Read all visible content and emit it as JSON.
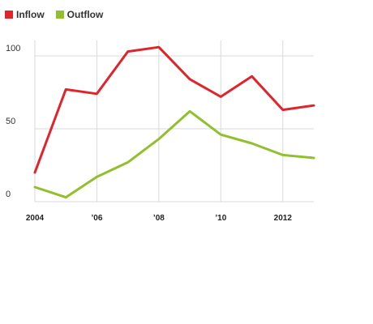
{
  "chart_data": {
    "type": "line",
    "title": "",
    "xlabel": "",
    "ylabel": "",
    "x": [
      2004,
      2005,
      2006,
      2007,
      2008,
      2009,
      2010,
      2011,
      2012,
      2013
    ],
    "xticks": [
      {
        "value": 2004,
        "label": "2004"
      },
      {
        "value": 2006,
        "label": "’06"
      },
      {
        "value": 2008,
        "label": "’08"
      },
      {
        "value": 2010,
        "label": "’10"
      },
      {
        "value": 2012,
        "label": "2012"
      }
    ],
    "yticks": [
      {
        "value": 0,
        "label": "0"
      },
      {
        "value": 50,
        "label": "50"
      },
      {
        "value": 100,
        "label": "100"
      }
    ],
    "xlim": [
      2004,
      2013
    ],
    "ylim": [
      0,
      100
    ],
    "grid": true,
    "legend_position": "top-left",
    "series": [
      {
        "name": "Inflow",
        "color": "#e1232b",
        "values": [
          20,
          77,
          74,
          103,
          106,
          84,
          72,
          86,
          63,
          66
        ]
      },
      {
        "name": "Outflow",
        "color": "#92c02c",
        "values": [
          10,
          3,
          17,
          27,
          43,
          62,
          46,
          40,
          32,
          30
        ]
      }
    ]
  }
}
